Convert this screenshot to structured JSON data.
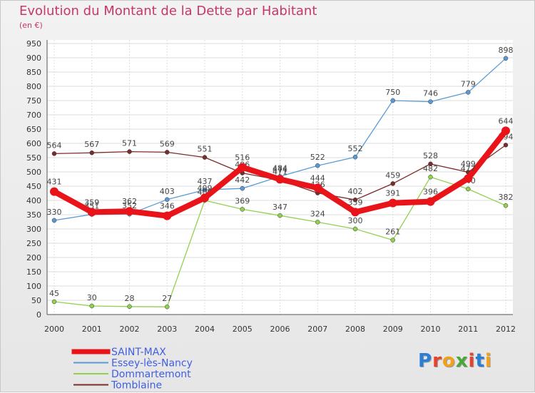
{
  "title": "Evolution du Montant de la Dette par Habitant",
  "subtitle": "(en €)",
  "brand": "Proxiti",
  "brand_colors": [
    "#2a7fd4",
    "#e8422a",
    "#f2a218",
    "#4aa83a",
    "#e8422a",
    "#2a7fd4",
    "#f2a218"
  ],
  "chart_data": {
    "type": "line",
    "x": [
      2000,
      2001,
      2002,
      2003,
      2004,
      2005,
      2006,
      2007,
      2008,
      2009,
      2010,
      2011,
      2012
    ],
    "ylim": [
      0,
      950
    ],
    "yticks": [
      0,
      50,
      100,
      150,
      200,
      250,
      300,
      350,
      400,
      450,
      500,
      550,
      600,
      650,
      700,
      750,
      800,
      850,
      900,
      950
    ],
    "grid": true,
    "legend_position": "bottom-left",
    "series": [
      {
        "name": "SAINT-MAX",
        "color": "#e8141a",
        "values": [
          431,
          359,
          362,
          346,
          409,
          516,
          474,
          444,
          359,
          391,
          396,
          477,
          644
        ]
      },
      {
        "name": "Essey-lès-Nancy",
        "color": "#5b9bd5",
        "values": [
          330,
          351,
          352,
          403,
          437,
          442,
          484,
          522,
          552,
          750,
          746,
          779,
          898
        ]
      },
      {
        "name": "Dommartemont",
        "color": "#92d050",
        "values": [
          45,
          30,
          28,
          27,
          400,
          369,
          347,
          324,
          300,
          261,
          482,
          440,
          382
        ]
      },
      {
        "name": "Tomblaine",
        "color": "#7b2c2c",
        "values": [
          564,
          567,
          571,
          569,
          551,
          496,
          471,
          426,
          402,
          459,
          528,
          499,
          594
        ]
      }
    ]
  }
}
